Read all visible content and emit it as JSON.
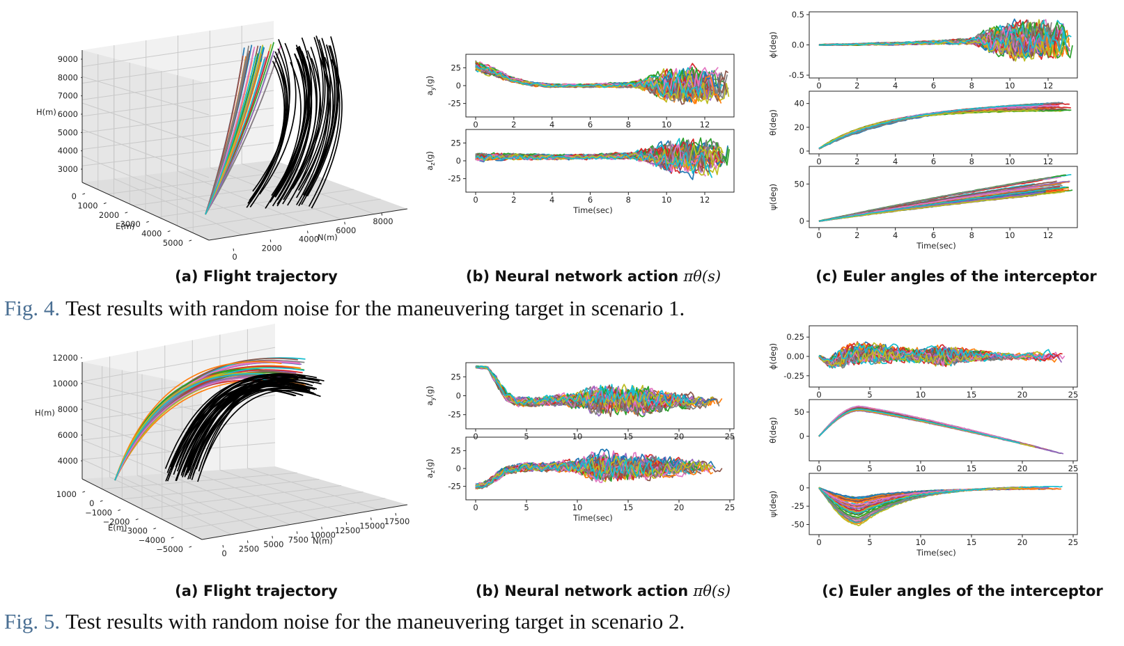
{
  "figures": [
    {
      "id": "fig4",
      "number": "Fig. 4.",
      "caption": "Test results with random noise for the maneuvering target in scenario 1.",
      "subcaptions": {
        "a": "(a) Flight trajectory",
        "b": "(b) Neural network action ",
        "b_math": "πθ(s)",
        "c": "(c) Euler angles of the interceptor"
      }
    },
    {
      "id": "fig5",
      "number": "Fig. 5.",
      "caption": "Test results with random noise for the maneuvering target in scenario 2.",
      "subcaptions": {
        "a": "(a) Flight trajectory",
        "b": "(b) Neural network action ",
        "b_math": "πθ(s)",
        "c": "(c) Euler angles of the interceptor"
      }
    }
  ],
  "palette": [
    "#1f77b4",
    "#ff7f0e",
    "#2ca02c",
    "#d62728",
    "#9467bd",
    "#8c564b",
    "#e377c2",
    "#7f7f7f",
    "#bcbd22",
    "#17becf"
  ],
  "chart_data": [
    {
      "id": "fig4a",
      "type": "line3d",
      "title": "(a) Flight trajectory",
      "axes": {
        "x": {
          "label": "N(m)",
          "ticks": [
            "0",
            "2000",
            "4000",
            "6000",
            "8000"
          ]
        },
        "y": {
          "label": "E(m)",
          "ticks": [
            "0",
            "1000",
            "2000",
            "3000",
            "4000",
            "5000"
          ]
        },
        "z": {
          "label": "H(m)",
          "ticks": [
            "3000",
            "4000",
            "5000",
            "6000",
            "7000",
            "8000",
            "9000"
          ]
        }
      },
      "series": [
        {
          "name": "interceptor trajectories",
          "count": 40
        },
        {
          "name": "target trajectories",
          "count": 40,
          "color": "#000000"
        }
      ]
    },
    {
      "id": "fig4b_top",
      "type": "line",
      "xlabel": "",
      "ylabel": "a_y(g)",
      "xlim": [
        0,
        14
      ],
      "ylim": [
        -40,
        40
      ],
      "xticks": [
        "0",
        "2",
        "4",
        "6",
        "8",
        "10",
        "12"
      ],
      "yticks": [
        "-25",
        "0",
        "25"
      ],
      "series_count": 40,
      "envelope": {
        "t": [
          0,
          1,
          2,
          3,
          4,
          6,
          8,
          9,
          10,
          12,
          13.3
        ],
        "center": [
          28,
          18,
          8,
          2,
          0,
          0,
          1,
          2,
          0,
          0,
          0
        ],
        "spread": [
          10,
          8,
          5,
          4,
          3,
          3,
          5,
          12,
          30,
          34,
          34
        ]
      }
    },
    {
      "id": "fig4b_bottom",
      "type": "line",
      "xlabel": "Time(sec)",
      "ylabel": "a_z(g)",
      "xlim": [
        0,
        14
      ],
      "ylim": [
        -40,
        40
      ],
      "xticks": [
        "0",
        "2",
        "4",
        "6",
        "8",
        "10",
        "12"
      ],
      "yticks": [
        "-25",
        "0",
        "25"
      ],
      "series_count": 40,
      "envelope": {
        "t": [
          0,
          2,
          4,
          6,
          8,
          9,
          10,
          12,
          13.3
        ],
        "center": [
          5,
          6,
          5,
          6,
          7,
          8,
          5,
          5,
          5
        ],
        "spread": [
          8,
          6,
          5,
          5,
          6,
          14,
          30,
          34,
          34
        ]
      }
    },
    {
      "id": "fig4c_phi",
      "type": "line",
      "xlabel": "",
      "ylabel": "ϕ(deg)",
      "xlim": [
        0,
        14
      ],
      "ylim": [
        -0.5,
        0.5
      ],
      "xticks": [
        "0",
        "2",
        "4",
        "6",
        "8",
        "10",
        "12"
      ],
      "yticks": [
        "-0.5",
        "0.0",
        "0.5"
      ],
      "series_count": 40,
      "envelope": {
        "t": [
          0,
          2,
          4,
          6,
          7,
          8,
          9,
          10,
          12,
          13.3
        ],
        "center": [
          0,
          0.01,
          0.02,
          0.04,
          0.05,
          0.06,
          0.08,
          0.08,
          0.08,
          0.08
        ],
        "spread": [
          0.01,
          0.02,
          0.03,
          0.04,
          0.05,
          0.07,
          0.3,
          0.4,
          0.42,
          0.42
        ]
      }
    },
    {
      "id": "fig4c_theta",
      "type": "line",
      "xlabel": "",
      "ylabel": "θ(deg)",
      "xlim": [
        0,
        14
      ],
      "ylim": [
        0,
        48
      ],
      "xticks": [
        "0",
        "2",
        "4",
        "6",
        "8",
        "10",
        "12"
      ],
      "yticks": [
        "0",
        "20",
        "40"
      ],
      "series_count": 40,
      "curve": {
        "kind": "saturating",
        "start": 2,
        "end_low": 34,
        "end_high": 45,
        "rate_low": 0.18,
        "rate_high": 0.35
      }
    },
    {
      "id": "fig4c_psi",
      "type": "line",
      "xlabel": "Time(sec)",
      "ylabel": "ψ(deg)",
      "xlim": [
        0,
        14
      ],
      "ylim": [
        -5,
        70
      ],
      "xticks": [
        "0",
        "2",
        "4",
        "6",
        "8",
        "10",
        "12"
      ],
      "yticks": [
        "0",
        "50"
      ],
      "series_count": 40,
      "curve": {
        "kind": "linear",
        "start": 0,
        "slope_low": 3.4,
        "slope_high": 5.6
      }
    },
    {
      "id": "fig5a",
      "type": "line3d",
      "title": "(a) Flight trajectory",
      "axes": {
        "x": {
          "label": "N(m)",
          "ticks": [
            "0",
            "2500",
            "5000",
            "7500",
            "10000",
            "12500",
            "15000",
            "17500"
          ]
        },
        "y": {
          "label": "E(m)",
          "ticks": [
            "1000",
            "0",
            "−1000",
            "−2000",
            "−3000",
            "−4000",
            "−5000"
          ]
        },
        "z": {
          "label": "H(m)",
          "ticks": [
            "4000",
            "6000",
            "8000",
            "10000",
            "12000"
          ]
        }
      },
      "series": [
        {
          "name": "interceptor trajectories",
          "count": 40
        },
        {
          "name": "target trajectories",
          "count": 40,
          "color": "#000000"
        }
      ]
    },
    {
      "id": "fig5b_top",
      "type": "line",
      "xlabel": "",
      "ylabel": "a_y(g)",
      "xlim": [
        0,
        25
      ],
      "ylim": [
        -40,
        40
      ],
      "xticks": [
        "0",
        "5",
        "10",
        "15",
        "20",
        "25"
      ],
      "yticks": [
        "-25",
        "0",
        "25"
      ],
      "series_count": 40,
      "envelope": {
        "t": [
          0,
          1.2,
          2,
          3,
          4,
          6,
          8,
          10,
          12,
          16,
          20,
          24.3
        ],
        "center": [
          38,
          37,
          20,
          0,
          -8,
          -8,
          -6,
          -6,
          -6,
          -6,
          -6,
          -8
        ],
        "spread": [
          2,
          2,
          8,
          8,
          8,
          8,
          9,
          14,
          26,
          24,
          14,
          12
        ]
      }
    },
    {
      "id": "fig5b_bottom",
      "type": "line",
      "xlabel": "Time(sec)",
      "ylabel": "a_z(g)",
      "xlim": [
        0,
        25
      ],
      "ylim": [
        -40,
        40
      ],
      "xticks": [
        "0",
        "5",
        "10",
        "15",
        "20",
        "25"
      ],
      "yticks": [
        "-25",
        "0",
        "25"
      ],
      "series_count": 40,
      "envelope": {
        "t": [
          0,
          1,
          2,
          3,
          5,
          8,
          10,
          12,
          16,
          20,
          24.3
        ],
        "center": [
          -25,
          -22,
          -12,
          -2,
          2,
          3,
          3,
          3,
          3,
          3,
          3
        ],
        "spread": [
          6,
          6,
          8,
          8,
          8,
          9,
          14,
          28,
          26,
          16,
          14
        ]
      }
    },
    {
      "id": "fig5c_phi",
      "type": "line",
      "xlabel": "",
      "ylabel": "ϕ(deg)",
      "xlim": [
        0,
        25
      ],
      "ylim": [
        -0.36,
        0.36
      ],
      "xticks": [
        "0",
        "5",
        "10",
        "15",
        "20",
        "25"
      ],
      "yticks": [
        "-0.25",
        "0.00",
        "0.25"
      ],
      "series_count": 40,
      "envelope": {
        "t": [
          0,
          1,
          2,
          4,
          6,
          8,
          10,
          12,
          15,
          18,
          20,
          24
        ],
        "center": [
          0,
          -0.08,
          -0.02,
          0.04,
          0.05,
          0.03,
          0.02,
          0.01,
          0.01,
          0.0,
          0.0,
          0.0
        ],
        "spread": [
          0.02,
          0.08,
          0.16,
          0.18,
          0.16,
          0.12,
          0.12,
          0.18,
          0.1,
          0.06,
          0.05,
          0.12
        ]
      }
    },
    {
      "id": "fig5c_theta",
      "type": "line",
      "xlabel": "",
      "ylabel": "θ(deg)",
      "xlim": [
        0,
        25
      ],
      "ylim": [
        -45,
        70
      ],
      "xticks": [
        "0",
        "5",
        "10",
        "15",
        "20",
        "25"
      ],
      "yticks": [
        "0",
        "50"
      ],
      "series_count": 40,
      "curve": {
        "kind": "rise_fall",
        "start": 0,
        "peak_t": 4,
        "peak_low": 52,
        "peak_high": 62,
        "end_value": -38
      }
    },
    {
      "id": "fig5c_psi",
      "type": "line",
      "xlabel": "Time(sec)",
      "ylabel": "ψ(deg)",
      "xlim": [
        0,
        25
      ],
      "ylim": [
        -60,
        16
      ],
      "xticks": [
        "0",
        "5",
        "10",
        "15",
        "20",
        "25"
      ],
      "yticks": [
        "-50",
        "-25",
        "0"
      ],
      "series_count": 40,
      "curve": {
        "kind": "dip_recover",
        "start": 0,
        "dip_t": 4,
        "dip_low": -52,
        "dip_high": -12,
        "end_low": -10,
        "end_high": 12
      }
    }
  ]
}
